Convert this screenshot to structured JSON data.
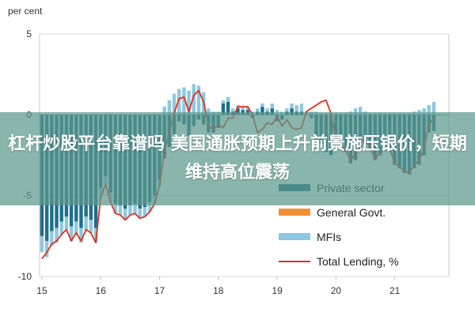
{
  "banner": {
    "headline": "杠杆炒股平台靠谱吗 美国通胀预期上升前景施压银价，短期维持高位震荡"
  },
  "chart_data": {
    "type": "bar",
    "stacked": true,
    "ylabel": "per cent",
    "ylim": [
      -10,
      5
    ],
    "yticks": [
      5,
      0,
      -5,
      -10
    ],
    "xticks": [
      "15",
      "16",
      "17",
      "18",
      "19",
      "20",
      "21"
    ],
    "x_start": 2015.0,
    "x_step": 0.0833,
    "legend_placement": "bottom-right",
    "series": [
      {
        "name": "Private sector",
        "kind": "bar",
        "color": "#1f6e8c",
        "values": [
          -7.5,
          -7.8,
          -7.2,
          -7.0,
          -6.6,
          -6.3,
          -6.9,
          -6.6,
          -7.0,
          -6.3,
          -6.5,
          -7.0,
          -4.5,
          -3.8,
          -4.8,
          -5.5,
          -5.6,
          -5.8,
          -5.6,
          -5.5,
          -5.8,
          -5.7,
          -5.4,
          -5.0,
          -4.0,
          -2.7,
          -2.0,
          -1.2,
          -0.4,
          -0.6,
          -1.3,
          -0.7,
          -0.3,
          -0.6,
          -1.1,
          -1.1,
          -0.8,
          0.7,
          0.8,
          0.2,
          0.4,
          0.3,
          0.3,
          -0.2,
          0.2,
          0.5,
          0.2,
          0.4,
          -0.4,
          -0.3,
          0.2,
          0.4,
          0.2,
          0.2,
          0.0,
          -0.2,
          -1.6,
          -1.8,
          -2.3,
          -2.5,
          -1.6,
          -1.9,
          -2.3,
          -3.0,
          -2.8,
          -2.1,
          -1.8,
          -2.1,
          -2.8,
          -2.5,
          -2.2,
          -2.2,
          -3.1,
          -3.3,
          -3.6,
          -3.7,
          -3.3,
          -3.1,
          -2.5,
          -1.1,
          -1.0
        ]
      },
      {
        "name": "General Govt.",
        "kind": "bar",
        "color": "#f0913a",
        "values": [
          0.0,
          0.0,
          0.0,
          0.0,
          0.0,
          0.0,
          0.0,
          0.0,
          0.0,
          0.0,
          0.0,
          0.0,
          0.0,
          0.0,
          0.0,
          0.0,
          0.0,
          0.0,
          0.0,
          0.0,
          0.0,
          0.0,
          0.0,
          0.0,
          0.0,
          0.0,
          0.0,
          0.0,
          0.0,
          0.0,
          0.0,
          0.0,
          0.0,
          0.0,
          0.0,
          0.0,
          0.0,
          0.0,
          0.0,
          0.0,
          0.0,
          0.0,
          0.0,
          0.0,
          0.0,
          0.0,
          0.0,
          0.0,
          0.0,
          0.0,
          0.0,
          0.0,
          0.0,
          0.0,
          0.0,
          0.0,
          0.0,
          0.0,
          0.0,
          0.0,
          0.0,
          0.0,
          0.0,
          0.0,
          0.0,
          0.0,
          0.0,
          0.0,
          0.0,
          0.0,
          0.0,
          0.0,
          0.0,
          0.0,
          0.0,
          0.0,
          0.0,
          0.0,
          0.0,
          0.0,
          0.0
        ]
      },
      {
        "name": "MFIs",
        "kind": "bar",
        "color": "#8fc7e0",
        "values": [
          -1.0,
          -1.0,
          -0.9,
          -0.9,
          -0.8,
          -0.8,
          -0.9,
          -0.8,
          -0.9,
          -0.8,
          -0.8,
          -0.9,
          -0.6,
          -0.5,
          -0.6,
          -0.6,
          -0.6,
          -0.7,
          -0.6,
          -0.6,
          -0.6,
          -0.6,
          -0.6,
          -0.5,
          -0.4,
          0.5,
          0.9,
          1.3,
          1.6,
          1.7,
          1.5,
          1.9,
          1.8,
          1.4,
          0.4,
          0.2,
          0.2,
          0.2,
          0.3,
          0.2,
          0.2,
          0.2,
          0.2,
          0.2,
          0.2,
          0.2,
          0.2,
          0.3,
          0.3,
          0.2,
          0.2,
          0.3,
          0.4,
          0.5,
          0.2,
          0.2,
          0.2,
          0.1,
          0.1,
          0.1,
          0.1,
          0.1,
          0.1,
          0.2,
          0.4,
          0.5,
          0.2,
          0.1,
          0.1,
          0.1,
          0.1,
          0.1,
          0.1,
          0.1,
          0.1,
          0.1,
          0.2,
          0.3,
          0.4,
          0.6,
          0.8
        ]
      },
      {
        "name": "Total Lending, %",
        "kind": "line",
        "color": "#e0301e",
        "values": [
          -8.9,
          -8.5,
          -8.0,
          -7.8,
          -7.4,
          -7.1,
          -7.8,
          -7.3,
          -7.8,
          -7.1,
          -7.3,
          -7.9,
          -5.1,
          -4.3,
          -5.4,
          -6.1,
          -6.2,
          -6.5,
          -6.2,
          -6.1,
          -6.4,
          -6.3,
          -6.0,
          -5.5,
          -4.4,
          -2.2,
          -1.1,
          0.1,
          1.0,
          1.1,
          0.2,
          1.2,
          1.5,
          0.8,
          -0.7,
          -0.9,
          -0.6,
          -0.8,
          -0.2,
          -0.2,
          0.5,
          0.5,
          0.5,
          0.0,
          -1.1,
          -0.9,
          -0.5,
          -0.6,
          -0.1,
          -0.7,
          -0.3,
          -0.8,
          -0.9,
          -0.8,
          0.2,
          0.4,
          0.6,
          0.8,
          0.9,
          0.1,
          -1.5,
          -1.8,
          -2.2,
          -2.8,
          -2.4,
          -1.6,
          -1.6,
          -2.0,
          -2.7,
          -2.4,
          -2.1,
          -2.1,
          -3.0,
          -3.2,
          -3.5,
          -3.6,
          -3.1,
          -2.8,
          -2.1,
          -0.6,
          -0.2
        ]
      }
    ]
  }
}
